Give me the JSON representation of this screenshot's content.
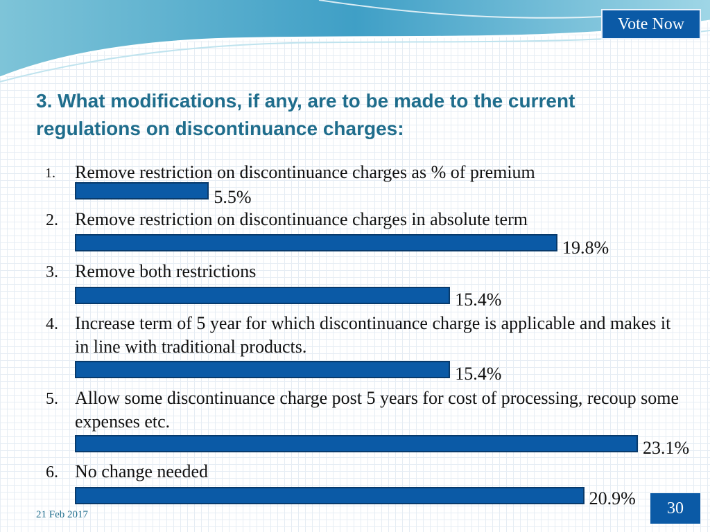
{
  "header": {
    "vote_label": "Vote Now"
  },
  "question": "3. What modifications, if any, are to be made to the current regulations on discontinuance charges:",
  "chart_data": {
    "type": "bar",
    "orientation": "horizontal",
    "categories": [
      "Remove restriction on discontinuance charges as % of premium",
      "Remove restriction on discontinuance charges in absolute term",
      "Remove both restrictions",
      "Increase term of 5 year for which discontinuance charge is applicable and makes it in line with traditional products.",
      "Allow some discontinuance charge post 5 years for cost of processing, recoup some expenses etc.",
      "No change needed"
    ],
    "numbers": [
      "1.",
      "2.",
      "3.",
      "4.",
      "5.",
      "6."
    ],
    "values": [
      5.5,
      19.8,
      15.4,
      15.4,
      23.1,
      20.9
    ],
    "value_labels": [
      "5.5%",
      "19.8%",
      "15.4%",
      "15.4%",
      "23.1%",
      "20.9%"
    ],
    "bar_color": "#0b5aa6"
  },
  "footer": {
    "date": "21 Feb 2017",
    "page": "30"
  }
}
